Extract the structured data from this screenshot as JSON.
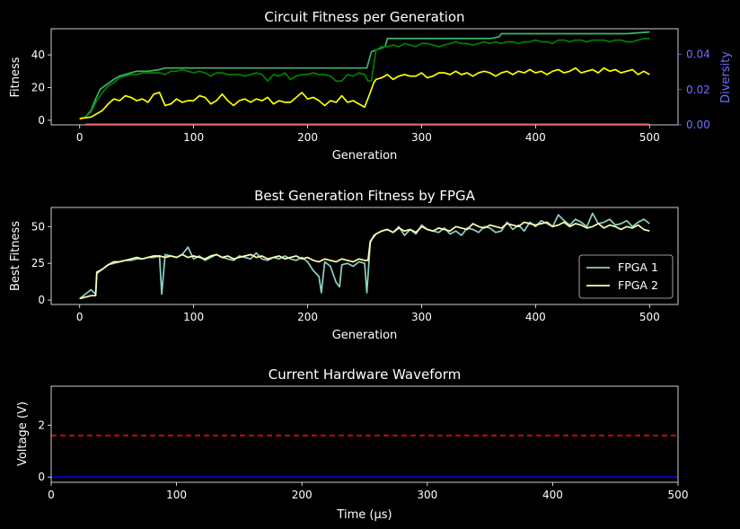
{
  "colors": {
    "background": "#000000",
    "best_fitness": "#3cb371",
    "max_fitness": "#008000",
    "avg_fitness": "#ffff00",
    "diversity": "#ff0000",
    "diversity_axis": "#6f6fff",
    "fpga1": "#8dd3c7",
    "fpga2": "#ffffb3",
    "waveform_input": "#0000ff",
    "waveform_reference": "#ff0000"
  },
  "chart_data": [
    {
      "id": "fitness",
      "type": "line",
      "title": "Circuit Fitness per Generation",
      "xlabel": "Generation",
      "ylabel": "Fitness",
      "y2label": "Diversity",
      "xlim": [
        -25,
        525
      ],
      "ylim": [
        -2.8,
        56
      ],
      "y2lim": [
        0,
        0.0546
      ],
      "xticks": [
        0,
        100,
        200,
        300,
        400,
        500
      ],
      "yticks": [
        0,
        20,
        40
      ],
      "y2ticks": [
        "0.00",
        "0.02",
        "0.04"
      ],
      "grid": false,
      "legend": "none",
      "series": [
        {
          "key": "best",
          "x": [
            0,
            5,
            10,
            14,
            18,
            22,
            26,
            30,
            35,
            40,
            45,
            50,
            60,
            70,
            75,
            100,
            120,
            140,
            160,
            180,
            200,
            220,
            240,
            252,
            256,
            260,
            268,
            270,
            300,
            320,
            340,
            360,
            368,
            370,
            400,
            420,
            440,
            460,
            480,
            500
          ],
          "values": [
            1,
            2,
            6,
            13,
            19,
            21,
            23,
            25,
            27,
            28,
            29,
            30,
            30,
            31,
            32,
            32,
            32,
            32,
            32,
            32,
            32,
            32,
            32,
            32,
            42,
            43,
            45,
            50,
            50,
            50,
            50,
            50,
            51,
            53,
            53,
            53,
            53,
            53,
            53,
            54
          ]
        },
        {
          "key": "max",
          "x": [
            0,
            5,
            10,
            15,
            20,
            25,
            30,
            35,
            40,
            45,
            50,
            55,
            60,
            65,
            70,
            75,
            80,
            85,
            90,
            95,
            100,
            105,
            110,
            115,
            120,
            125,
            130,
            135,
            140,
            145,
            150,
            155,
            160,
            165,
            170,
            175,
            180,
            185,
            190,
            195,
            200,
            205,
            210,
            215,
            220,
            225,
            230,
            235,
            240,
            245,
            250,
            253,
            256,
            260,
            265,
            270,
            275,
            280,
            285,
            290,
            295,
            300,
            305,
            310,
            315,
            320,
            325,
            330,
            335,
            340,
            345,
            350,
            355,
            360,
            365,
            370,
            375,
            380,
            385,
            390,
            395,
            400,
            405,
            410,
            415,
            420,
            425,
            430,
            435,
            440,
            445,
            450,
            455,
            460,
            465,
            470,
            475,
            480,
            485,
            490,
            495,
            500
          ],
          "values": [
            1,
            2,
            5,
            12,
            17,
            21,
            23,
            26,
            27,
            28,
            28,
            29,
            29,
            29,
            29,
            28,
            30,
            30,
            31,
            30,
            29,
            30,
            29,
            27,
            29,
            29,
            28,
            28,
            28,
            27,
            28,
            29,
            28,
            24,
            28,
            27,
            29,
            25,
            27,
            28,
            28,
            29,
            28,
            28,
            27,
            24,
            24,
            28,
            27,
            29,
            28,
            24,
            24,
            43,
            45,
            45,
            46,
            45,
            47,
            46,
            45,
            47,
            47,
            46,
            45,
            46,
            47,
            48,
            47,
            47,
            46,
            47,
            48,
            47,
            48,
            47,
            48,
            48,
            47,
            48,
            48,
            49,
            48,
            48,
            47,
            49,
            49,
            48,
            49,
            49,
            48,
            49,
            49,
            49,
            48,
            49,
            49,
            48,
            48,
            49,
            50,
            50
          ]
        },
        {
          "key": "avg",
          "x": [
            0,
            5,
            10,
            15,
            20,
            25,
            30,
            35,
            40,
            45,
            50,
            55,
            60,
            65,
            70,
            75,
            80,
            85,
            90,
            95,
            100,
            105,
            110,
            115,
            120,
            125,
            130,
            135,
            140,
            145,
            150,
            155,
            160,
            165,
            170,
            175,
            180,
            185,
            190,
            195,
            200,
            205,
            210,
            215,
            220,
            225,
            230,
            235,
            240,
            245,
            250,
            255,
            258,
            260,
            265,
            270,
            275,
            280,
            285,
            290,
            295,
            300,
            305,
            310,
            315,
            320,
            325,
            330,
            335,
            340,
            345,
            350,
            355,
            360,
            365,
            370,
            375,
            380,
            385,
            390,
            395,
            400,
            405,
            410,
            415,
            420,
            425,
            430,
            435,
            440,
            445,
            450,
            455,
            460,
            465,
            470,
            475,
            480,
            485,
            490,
            495,
            500
          ],
          "values": [
            1,
            1.5,
            2,
            4,
            6,
            10,
            13,
            12,
            15,
            14,
            12,
            13,
            11,
            16,
            17,
            9,
            10,
            13,
            11,
            12,
            12,
            15,
            14,
            10,
            12,
            16,
            12,
            9,
            12,
            13,
            11,
            13,
            12,
            14,
            10,
            12,
            11,
            11,
            14,
            17,
            13,
            14,
            12,
            9,
            12,
            11,
            15,
            11,
            12,
            10,
            8,
            17,
            23,
            25,
            26,
            28,
            25,
            27,
            28,
            27,
            27,
            29,
            26,
            27,
            29,
            29,
            28,
            30,
            28,
            29,
            27,
            29,
            30,
            29,
            27,
            29,
            30,
            28,
            30,
            29,
            31,
            29,
            30,
            28,
            30,
            31,
            29,
            30,
            32,
            29,
            30,
            31,
            29,
            32,
            30,
            31,
            29,
            30,
            31,
            28,
            30,
            28
          ]
        },
        {
          "key": "diversity",
          "axis": "y2",
          "x": [
            5,
            100,
            200,
            300,
            400,
            500
          ],
          "values": [
            0.0005,
            0.0005,
            0.0005,
            0.0005,
            0.0005,
            0.0005
          ]
        }
      ]
    },
    {
      "id": "fpga",
      "type": "line",
      "title": "Best Generation Fitness by FPGA",
      "xlabel": "Generation",
      "ylabel": "Best Fitness",
      "xlim": [
        -25,
        525
      ],
      "ylim": [
        -3,
        63
      ],
      "xticks": [
        0,
        100,
        200,
        300,
        400,
        500
      ],
      "yticks": [
        0,
        25,
        50
      ],
      "grid": false,
      "legend": "lower-right",
      "series": [
        {
          "name": "FPGA 1",
          "x": [
            0,
            5,
            10,
            14,
            15,
            20,
            25,
            30,
            35,
            40,
            45,
            50,
            55,
            60,
            65,
            70,
            72,
            75,
            80,
            85,
            90,
            95,
            100,
            105,
            110,
            115,
            120,
            125,
            130,
            135,
            140,
            145,
            150,
            155,
            160,
            165,
            170,
            175,
            180,
            185,
            190,
            195,
            200,
            205,
            210,
            212,
            215,
            220,
            225,
            228,
            230,
            235,
            240,
            245,
            250,
            252,
            255,
            258,
            260,
            265,
            270,
            275,
            280,
            285,
            290,
            295,
            300,
            305,
            310,
            315,
            320,
            325,
            330,
            335,
            340,
            345,
            350,
            355,
            360,
            365,
            370,
            375,
            380,
            385,
            390,
            395,
            400,
            405,
            410,
            415,
            420,
            425,
            430,
            435,
            440,
            445,
            450,
            455,
            460,
            465,
            470,
            475,
            480,
            485,
            490,
            495,
            500
          ],
          "values": [
            1,
            4,
            7,
            4,
            18,
            21,
            24,
            25,
            26,
            27,
            27,
            28,
            28,
            29,
            29,
            30,
            4,
            31,
            30,
            29,
            31,
            36,
            28,
            30,
            27,
            29,
            31,
            29,
            28,
            27,
            30,
            29,
            28,
            32,
            28,
            27,
            29,
            28,
            30,
            28,
            27,
            29,
            26,
            20,
            16,
            5,
            26,
            23,
            12,
            9,
            24,
            25,
            23,
            26,
            25,
            5,
            39,
            44,
            45,
            47,
            48,
            46,
            50,
            44,
            48,
            45,
            51,
            48,
            47,
            46,
            49,
            45,
            47,
            44,
            49,
            48,
            46,
            50,
            49,
            46,
            47,
            53,
            48,
            51,
            47,
            53,
            50,
            54,
            52,
            50,
            58,
            54,
            51,
            55,
            53,
            50,
            59,
            52,
            53,
            55,
            51,
            52,
            54,
            50,
            53,
            55,
            52
          ]
        },
        {
          "name": "FPGA 2",
          "x": [
            0,
            5,
            10,
            14,
            15,
            20,
            25,
            30,
            35,
            40,
            45,
            50,
            55,
            60,
            65,
            70,
            75,
            80,
            85,
            90,
            95,
            100,
            105,
            110,
            115,
            120,
            125,
            130,
            135,
            140,
            145,
            150,
            155,
            160,
            165,
            170,
            175,
            180,
            185,
            190,
            195,
            200,
            205,
            210,
            215,
            220,
            225,
            230,
            235,
            240,
            245,
            250,
            253,
            255,
            260,
            265,
            270,
            275,
            280,
            285,
            290,
            295,
            300,
            305,
            310,
            315,
            320,
            325,
            330,
            335,
            340,
            345,
            350,
            355,
            360,
            365,
            370,
            375,
            380,
            385,
            390,
            395,
            400,
            405,
            410,
            415,
            420,
            425,
            430,
            435,
            440,
            445,
            450,
            455,
            460,
            465,
            470,
            475,
            480,
            485,
            490,
            495,
            500
          ],
          "values": [
            1,
            2,
            3,
            3,
            19,
            21,
            24,
            26,
            26,
            27,
            28,
            29,
            28,
            29,
            30,
            30,
            29,
            30,
            29,
            31,
            29,
            30,
            29,
            28,
            30,
            31,
            29,
            30,
            28,
            29,
            30,
            31,
            29,
            30,
            28,
            29,
            30,
            28,
            29,
            30,
            28,
            29,
            27,
            26,
            28,
            27,
            26,
            28,
            27,
            26,
            28,
            27,
            27,
            40,
            45,
            47,
            48,
            46,
            49,
            47,
            48,
            46,
            50,
            48,
            47,
            49,
            48,
            47,
            50,
            49,
            48,
            52,
            50,
            49,
            51,
            50,
            49,
            52,
            51,
            50,
            53,
            52,
            51,
            52,
            53,
            50,
            51,
            53,
            50,
            52,
            51,
            49,
            50,
            52,
            49,
            51,
            50,
            48,
            50,
            49,
            51,
            48,
            47
          ]
        }
      ]
    },
    {
      "id": "waveform",
      "type": "line",
      "title": "Current Hardware Waveform",
      "xlabel": "Time (µs)",
      "ylabel": "Voltage (V)",
      "xlim": [
        0,
        500
      ],
      "ylim": [
        -0.2,
        3.5
      ],
      "xticks": [
        0,
        100,
        200,
        300,
        400,
        500
      ],
      "yticks": [
        0,
        2
      ],
      "grid": false,
      "legend": "none",
      "series": [
        {
          "key": "input",
          "x": [
            0,
            500
          ],
          "values": [
            0,
            0
          ]
        },
        {
          "key": "reference",
          "style": "dashed",
          "x": [
            0,
            500
          ],
          "values": [
            1.6,
            1.6
          ]
        }
      ]
    }
  ]
}
